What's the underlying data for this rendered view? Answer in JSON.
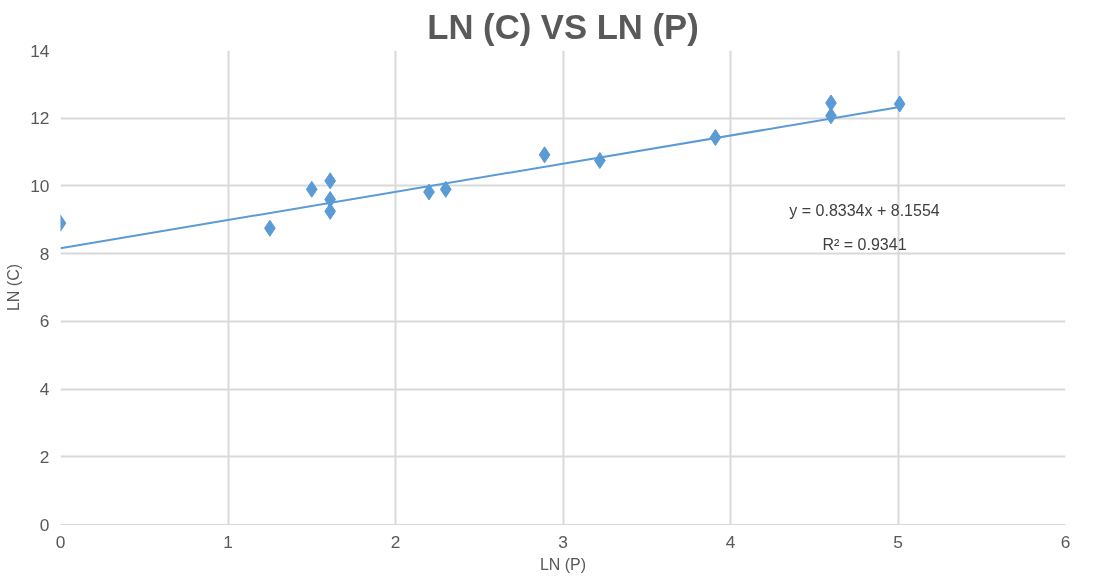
{
  "chart_data": {
    "type": "scatter",
    "title": "LN (C) VS LN (P)",
    "xlabel": "LN (P)",
    "ylabel": "LN (C)",
    "xlim": [
      0,
      6
    ],
    "xticks": [
      0,
      1,
      2,
      3,
      4,
      5,
      6
    ],
    "ylim": [
      0,
      14
    ],
    "yticks": [
      0,
      2,
      4,
      6,
      8,
      10,
      12,
      14
    ],
    "grid": true,
    "marker": "diamond",
    "series": [
      {
        "color": "#5b9bd5",
        "x": [
          0,
          1.25,
          1.5,
          1.61,
          1.61,
          1.61,
          2.2,
          2.3,
          2.89,
          3.22,
          3.91,
          4.6,
          4.6,
          5.01
        ],
        "values": [
          8.9,
          8.75,
          9.9,
          10.15,
          9.6,
          9.25,
          9.82,
          9.9,
          10.92,
          10.75,
          11.43,
          12.45,
          12.07,
          12.42
        ]
      },
      {
        "type": "line",
        "marker": "none",
        "color": "#5b9bd5",
        "x": [
          0,
          5.01
        ],
        "values": [
          8.16,
          12.33
        ]
      }
    ],
    "annotations": [
      "y = 0.8334x + 8.1554",
      "R² = 0.9341"
    ]
  }
}
